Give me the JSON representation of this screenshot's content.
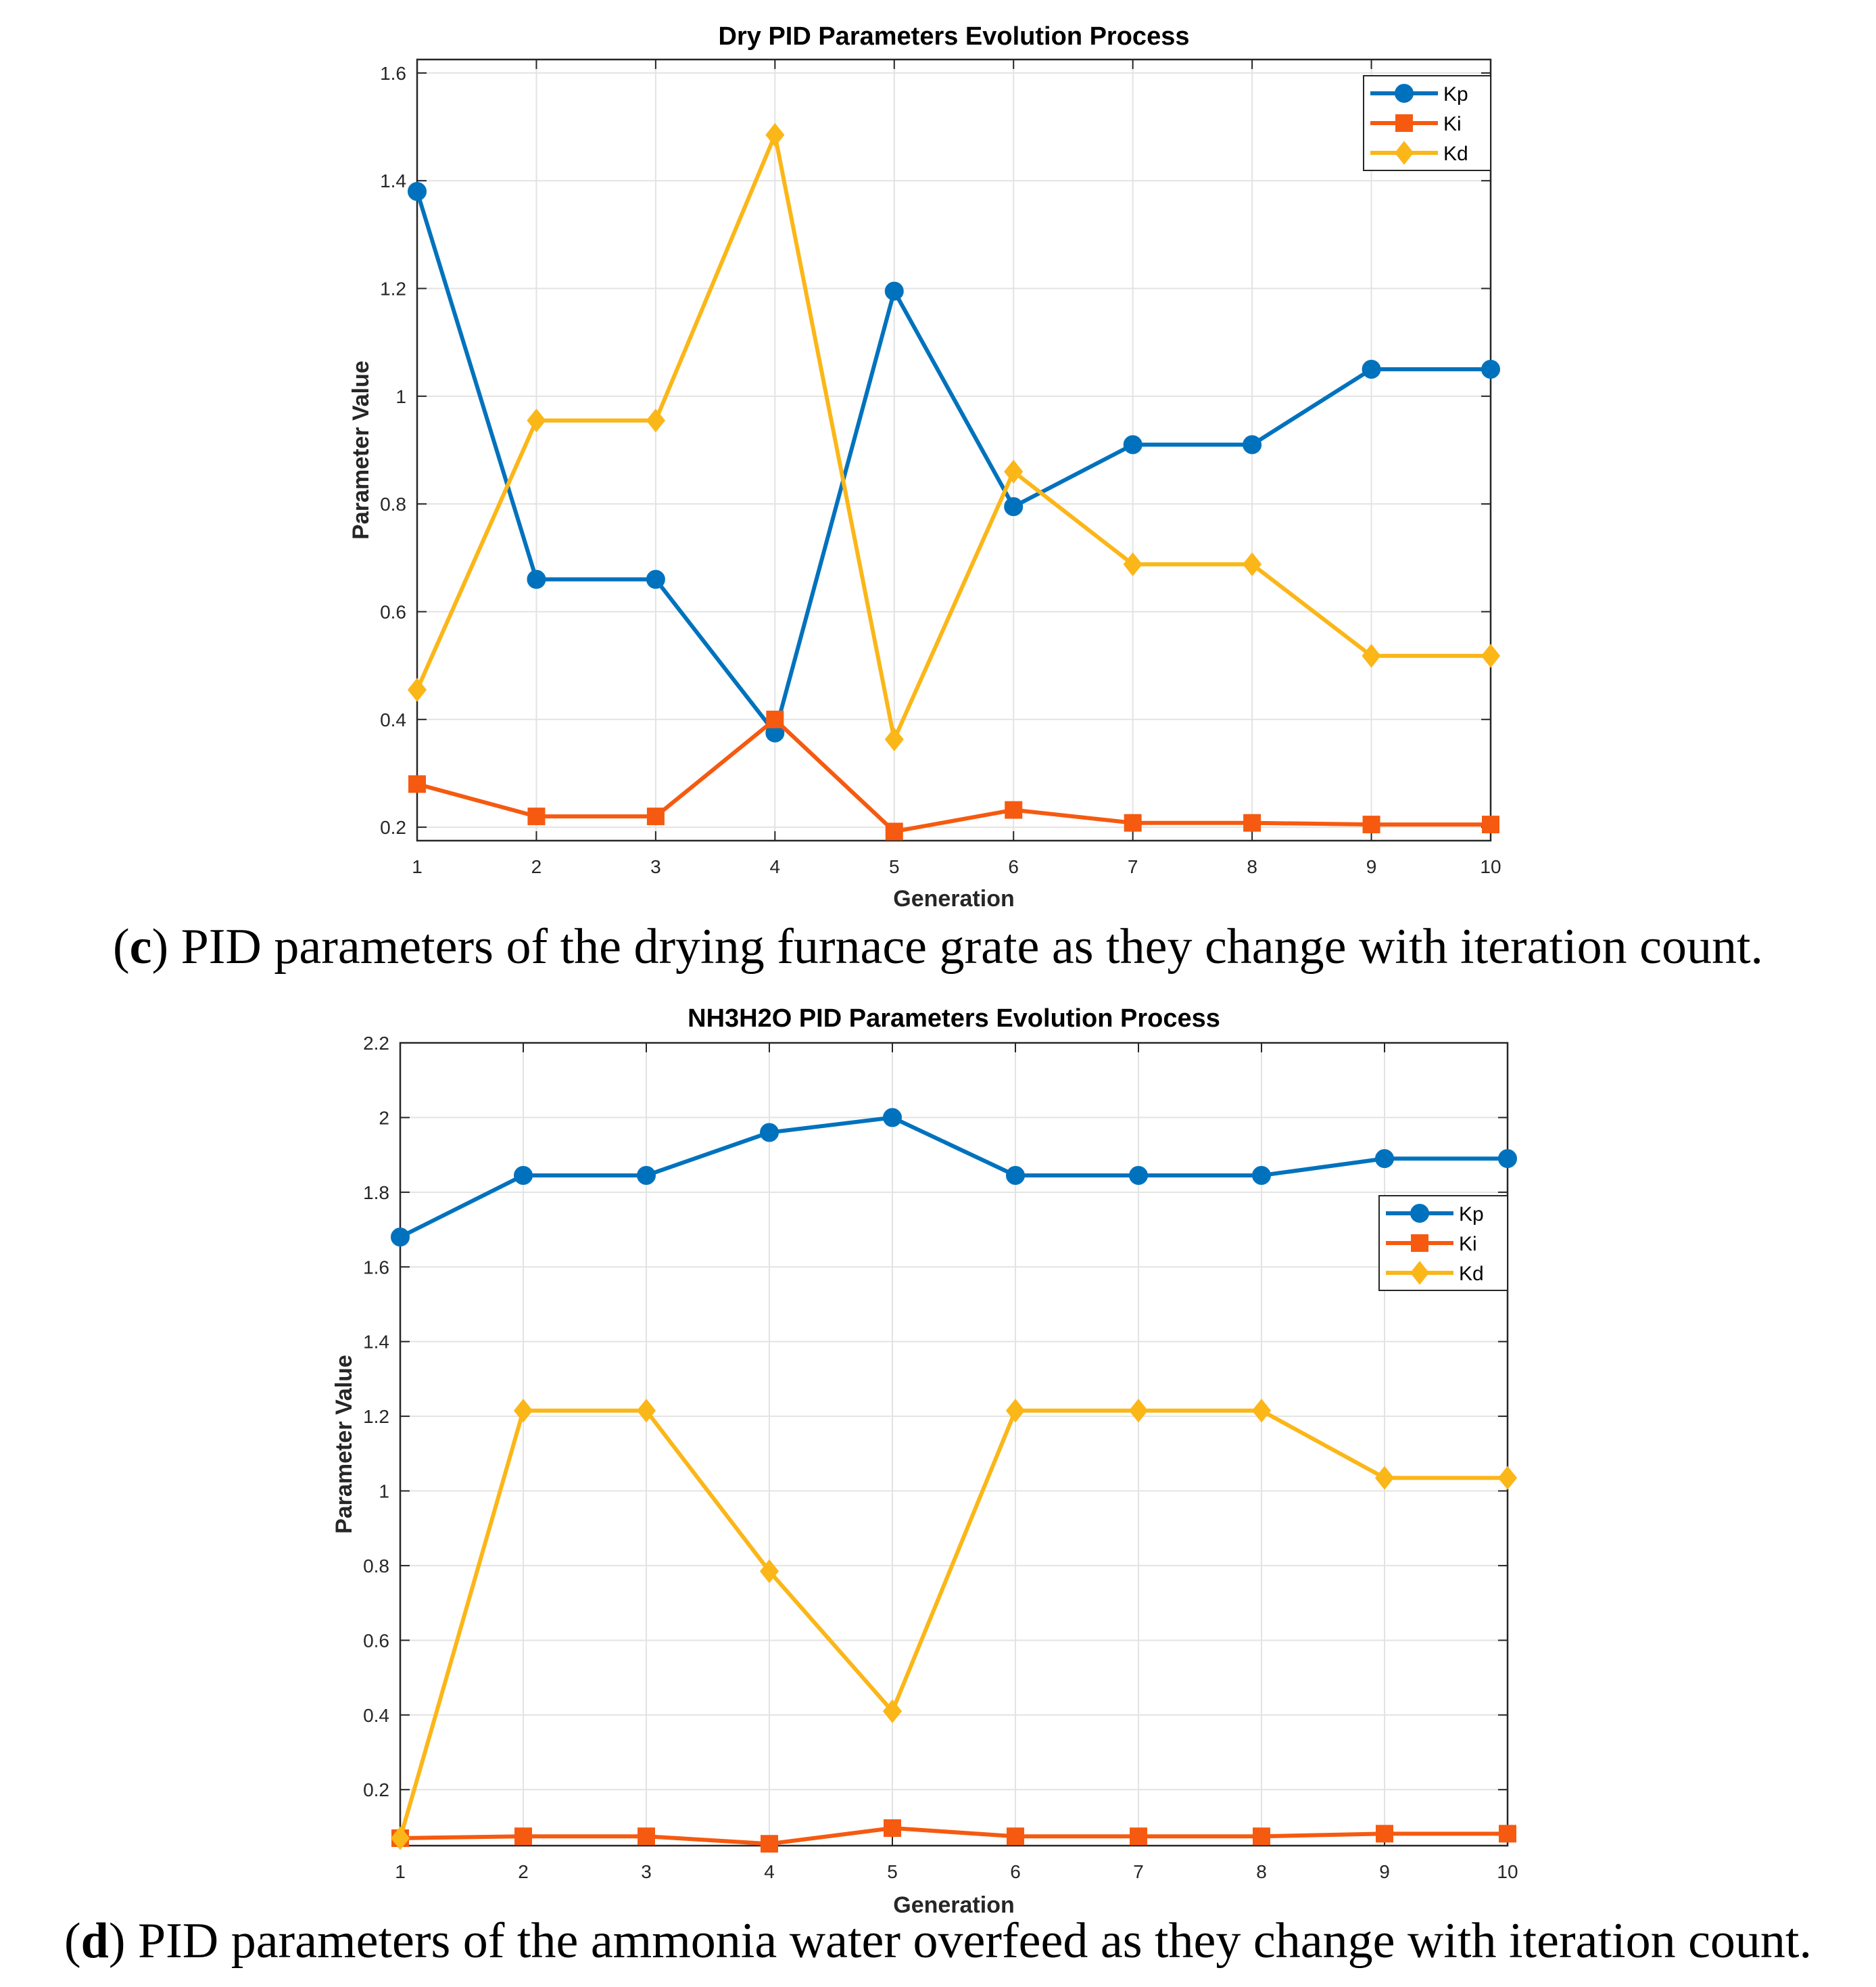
{
  "chart_data": [
    {
      "type": "line",
      "title": "Dry PID Parameters Evolution Process",
      "xlabel": "Generation",
      "ylabel": "Parameter Value",
      "xlim": [
        1,
        10
      ],
      "ylim": [
        0.175,
        1.625
      ],
      "grid": true,
      "legend_position": "top-right",
      "x": [
        1,
        2,
        3,
        4,
        5,
        6,
        7,
        8,
        9,
        10
      ],
      "x_ticks": [
        "1",
        "2",
        "3",
        "4",
        "5",
        "6",
        "7",
        "8",
        "9",
        "10"
      ],
      "y_ticks": [
        0.2,
        0.4,
        0.6,
        0.8,
        1.0,
        1.2,
        1.4,
        1.6
      ],
      "y_tick_labels": [
        "0.2",
        "0.4",
        "0.6",
        "0.8",
        "1",
        "1.2",
        "1.4",
        "1.6"
      ],
      "series": [
        {
          "name": "Kp",
          "color": "#0072BD",
          "marker": "circle",
          "values": [
            1.38,
            0.66,
            0.66,
            0.375,
            1.195,
            0.795,
            0.91,
            0.91,
            1.05,
            1.05
          ]
        },
        {
          "name": "Ki",
          "color": "#F55A10",
          "marker": "square",
          "values": [
            0.28,
            0.22,
            0.22,
            0.4,
            0.192,
            0.232,
            0.208,
            0.208,
            0.205,
            0.205
          ]
        },
        {
          "name": "Kd",
          "color": "#FBB618",
          "marker": "diamond",
          "values": [
            0.455,
            0.955,
            0.955,
            1.485,
            0.363,
            0.86,
            0.688,
            0.688,
            0.518,
            0.518
          ]
        }
      ]
    },
    {
      "type": "line",
      "title": "NH3H2O PID Parameters Evolution Process",
      "xlabel": "Generation",
      "ylabel": "Parameter Value",
      "xlim": [
        1,
        10
      ],
      "ylim": [
        0.05,
        2.2
      ],
      "grid": true,
      "legend_position": "upper-right",
      "x": [
        1,
        2,
        3,
        4,
        5,
        6,
        7,
        8,
        9,
        10
      ],
      "x_ticks": [
        "1",
        "2",
        "3",
        "4",
        "5",
        "6",
        "7",
        "8",
        "9",
        "10"
      ],
      "y_ticks": [
        0.2,
        0.4,
        0.6,
        0.8,
        1.0,
        1.2,
        1.4,
        1.6,
        1.8,
        2.0,
        2.2
      ],
      "y_tick_labels": [
        "0.2",
        "0.4",
        "0.6",
        "0.8",
        "1",
        "1.2",
        "1.4",
        "1.6",
        "1.8",
        "2",
        "2.2"
      ],
      "series": [
        {
          "name": "Kp",
          "color": "#0072BD",
          "marker": "circle",
          "values": [
            1.68,
            1.845,
            1.845,
            1.96,
            2.0,
            1.845,
            1.845,
            1.845,
            1.89,
            1.89
          ]
        },
        {
          "name": "Ki",
          "color": "#F55A10",
          "marker": "square",
          "values": [
            0.07,
            0.075,
            0.075,
            0.055,
            0.097,
            0.075,
            0.075,
            0.075,
            0.082,
            0.082
          ]
        },
        {
          "name": "Kd",
          "color": "#FBB618",
          "marker": "diamond",
          "values": [
            0.07,
            1.215,
            1.215,
            0.785,
            0.41,
            1.215,
            1.215,
            1.215,
            1.035,
            1.035
          ]
        }
      ]
    }
  ],
  "captions": {
    "c": {
      "letter": "c",
      "text": ") PID parameters of the drying furnace grate as they change with iteration count."
    },
    "d": {
      "letter": "d",
      "text": ") PID parameters of the ammonia water overfeed as they change with iteration count."
    }
  }
}
